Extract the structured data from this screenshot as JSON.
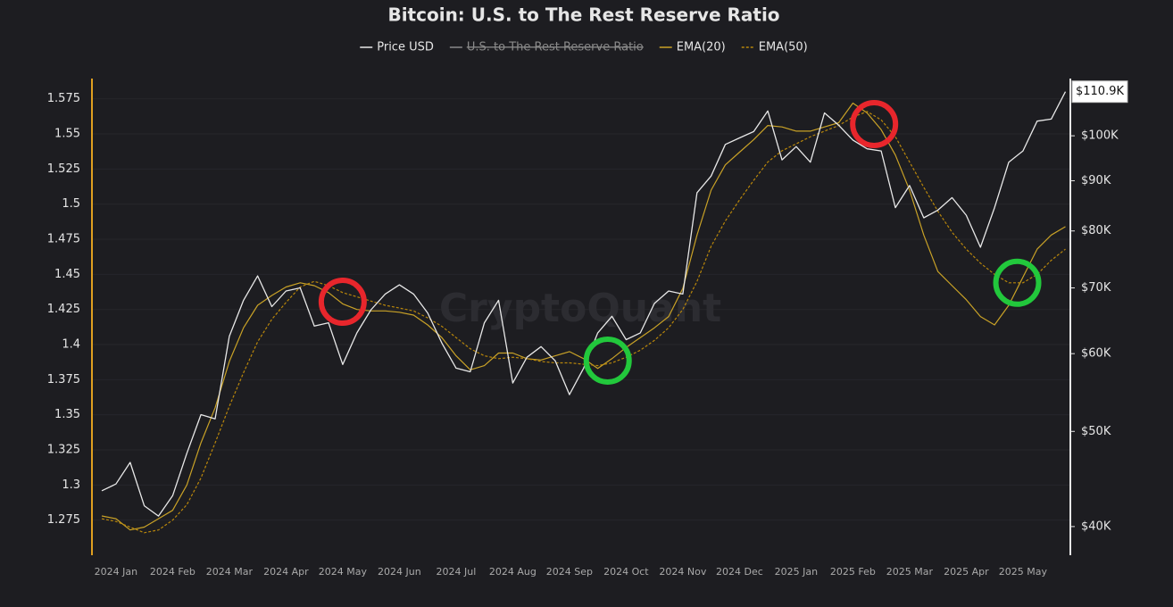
{
  "chart_data": {
    "type": "line",
    "title": "Bitcoin: U.S. to The Rest Reserve Ratio",
    "watermark": "CryptoQuant",
    "categories": [
      null,
      "2024 Jan",
      null,
      null,
      null,
      "2024 Feb",
      null,
      null,
      null,
      "2024 Mar",
      null,
      null,
      null,
      "2024 Apr",
      null,
      null,
      null,
      "2024 May",
      null,
      null,
      null,
      "2024 Jun",
      null,
      null,
      null,
      "2024 Jul",
      null,
      null,
      null,
      "2024 Aug",
      null,
      null,
      null,
      "2024 Sep",
      null,
      null,
      null,
      "2024 Oct",
      null,
      null,
      null,
      "2024 Nov",
      null,
      null,
      null,
      "2024 Dec",
      null,
      null,
      null,
      "2025 Jan",
      null,
      null,
      null,
      "2025 Feb",
      null,
      null,
      null,
      "2025 Mar",
      null,
      null,
      null,
      "2025 Apr",
      null,
      null,
      null,
      "2025 May",
      null,
      null,
      null
    ],
    "series": [
      {
        "name": "Price USD",
        "color": "#e8e8e8",
        "axis": "y2",
        "values": [
          43500,
          44200,
          46500,
          42000,
          41000,
          43000,
          47500,
          52000,
          51500,
          62500,
          68000,
          72000,
          67000,
          69500,
          70000,
          64000,
          64500,
          58500,
          63000,
          66500,
          69000,
          70500,
          69000,
          66000,
          61500,
          58000,
          57500,
          64500,
          68000,
          56000,
          59500,
          61000,
          59000,
          54500,
          58000,
          63000,
          65500,
          62000,
          63000,
          67500,
          69500,
          69000,
          87500,
          91000,
          98000,
          99500,
          101000,
          106000,
          94500,
          97500,
          94000,
          105500,
          102500,
          99000,
          97000,
          96500,
          84500,
          89000,
          82500,
          84000,
          86500,
          83000,
          77000,
          84500,
          94000,
          96500,
          103500,
          104000,
          110900
        ],
        "value_labels": [
          null,
          null,
          null,
          null,
          null,
          null,
          null,
          null,
          null,
          null,
          null,
          null,
          null,
          null,
          null,
          null,
          null,
          null,
          null,
          null,
          null,
          null,
          null,
          null,
          null,
          null,
          null,
          null,
          null,
          null,
          null,
          null,
          null,
          null,
          null,
          null,
          null,
          null,
          null,
          null,
          null,
          null,
          null,
          null,
          null,
          null,
          null,
          null,
          null,
          null,
          null,
          null,
          null,
          null,
          null,
          null,
          null,
          null,
          null,
          null,
          null,
          null,
          null,
          null,
          null,
          null,
          null,
          null,
          "$110.9K"
        ]
      },
      {
        "name": "U.S. to The Rest Reserve Ratio",
        "color": "#8a8a8a",
        "hidden": true
      },
      {
        "name": "EMA(20)",
        "color": "#c9a227",
        "values": [
          1.278,
          1.276,
          1.268,
          1.27,
          1.276,
          1.282,
          1.3,
          1.33,
          1.355,
          1.388,
          1.412,
          1.428,
          1.435,
          1.441,
          1.444,
          1.442,
          1.437,
          1.429,
          1.425,
          1.424,
          1.424,
          1.423,
          1.421,
          1.414,
          1.405,
          1.392,
          1.382,
          1.385,
          1.394,
          1.394,
          1.39,
          1.389,
          1.392,
          1.395,
          1.39,
          1.383,
          1.39,
          1.398,
          1.405,
          1.412,
          1.42,
          1.44,
          1.478,
          1.51,
          1.528,
          1.537,
          1.546,
          1.556,
          1.555,
          1.552,
          1.552,
          1.555,
          1.558,
          1.572,
          1.565,
          1.553,
          1.535,
          1.51,
          1.478,
          1.452,
          1.442,
          1.432,
          1.42,
          1.414,
          1.428,
          1.448,
          1.468,
          1.478,
          1.484
        ]
      },
      {
        "name": "EMA(50)",
        "color": "#b8860b",
        "dashed": true,
        "values": [
          1.276,
          1.274,
          1.27,
          1.266,
          1.268,
          1.275,
          1.286,
          1.305,
          1.33,
          1.356,
          1.38,
          1.402,
          1.418,
          1.43,
          1.441,
          1.445,
          1.442,
          1.437,
          1.434,
          1.431,
          1.428,
          1.426,
          1.424,
          1.419,
          1.413,
          1.405,
          1.397,
          1.392,
          1.39,
          1.391,
          1.39,
          1.388,
          1.387,
          1.387,
          1.386,
          1.385,
          1.387,
          1.391,
          1.396,
          1.403,
          1.412,
          1.425,
          1.445,
          1.47,
          1.488,
          1.503,
          1.517,
          1.53,
          1.538,
          1.543,
          1.548,
          1.552,
          1.556,
          1.562,
          1.566,
          1.56,
          1.548,
          1.53,
          1.512,
          1.495,
          1.48,
          1.468,
          1.458,
          1.45,
          1.444,
          1.444,
          1.45,
          1.46,
          1.468
        ]
      }
    ],
    "ylim": [
      1.25,
      1.585
    ],
    "yticks": [
      1.275,
      1.3,
      1.325,
      1.35,
      1.375,
      1.4,
      1.425,
      1.45,
      1.475,
      1.5,
      1.525,
      1.55,
      1.575
    ],
    "y2lim": [
      37400,
      112700
    ],
    "y2_log": true,
    "y2ticks": [
      {
        "value": 40000,
        "label": "$40K"
      },
      {
        "value": 50000,
        "label": "$50K"
      },
      {
        "value": 60000,
        "label": "$60K"
      },
      {
        "value": 70000,
        "label": "$70K"
      },
      {
        "value": 80000,
        "label": "$80K"
      },
      {
        "value": 90000,
        "label": "$90K"
      },
      {
        "value": 100000,
        "label": "$100K"
      }
    ],
    "grid": true,
    "highlights": [
      {
        "index": 17,
        "value": 1.4305,
        "color": "#e8262c"
      },
      {
        "index": 54.5,
        "value": 1.557,
        "color": "#e8262c"
      },
      {
        "index": 35.7,
        "value": 1.3886,
        "color": "#22c83c"
      },
      {
        "index": 64.6,
        "value": 1.444,
        "color": "#22c83c"
      }
    ]
  }
}
